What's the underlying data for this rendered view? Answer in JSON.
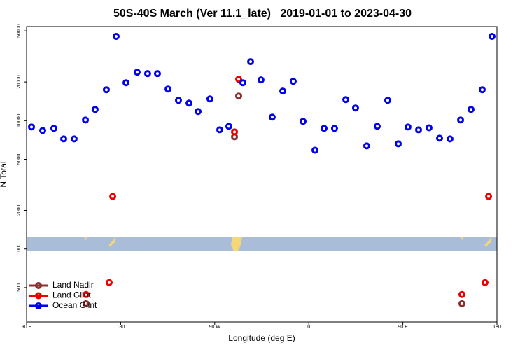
{
  "chart_data": {
    "type": "scatter",
    "title": "50S-40S March (Ver 11.1_late)   2019-01-01 to 2023-04-30",
    "x_label": "Longitude (deg E)",
    "y_label": "N Total",
    "log_y": true,
    "legend": "lower left",
    "xlim": [
      90,
      540
    ],
    "xticks": [
      {
        "value": 90,
        "label": "90 E"
      },
      180,
      {
        "value": 270,
        "label": "90 W"
      },
      {
        "value": 360,
        "label": "0"
      },
      {
        "value": 450,
        "label": "90 E"
      },
      {
        "value": 540,
        "label": "180"
      }
    ],
    "ylim": [
      270,
      54000
    ],
    "yticks": [
      500,
      1000,
      2000,
      5000,
      10000,
      20000,
      50000
    ],
    "series": [
      {
        "name": "Land Nadir",
        "color": "#8b3030",
        "x": [
          292.9,
          288.9,
          146.9,
          506.5
        ],
        "values": [
          15530,
          7490,
          375,
          375
        ]
      },
      {
        "name": "Land Glint",
        "color": "#ee0000",
        "x": [
          172.4,
          169.0,
          146.9,
          292.9,
          288.9,
          506.5,
          528.6,
          532.0
        ],
        "values": [
          2570,
          547,
          442,
          21000,
          8180,
          442,
          547,
          2570
        ]
      },
      {
        "name": "Ocean Glint",
        "color": "#0000ee",
        "x": [
          94.7,
          105.4,
          116.1,
          125.5,
          135.5,
          146.3,
          155.6,
          166.3,
          175.7,
          185.1,
          195.8,
          205.8,
          215.2,
          225.3,
          235.3,
          245.4,
          254.1,
          265.4,
          274.8,
          283.5,
          296.9,
          304.3,
          314.3,
          325.0,
          335.1,
          345.1,
          354.5,
          365.9,
          374.6,
          384.6,
          395.4,
          404.7,
          415.4,
          425.5,
          435.5,
          445.6,
          454.9,
          465.0,
          475.0,
          485.1,
          495.1,
          505.2,
          515.2,
          525.9,
          535.3
        ],
        "values": [
          8930,
          8380,
          8710,
          7210,
          7210,
          10120,
          12230,
          17390,
          45270,
          19730,
          23820,
          23230,
          23230,
          17620,
          14400,
          13700,
          11780,
          14770,
          8490,
          9040,
          19730,
          28770,
          20750,
          10650,
          16980,
          20230,
          9880,
          5890,
          8710,
          8710,
          14590,
          12540,
          6360,
          9040,
          14400,
          6600,
          8930,
          8490,
          8800,
          7300,
          7210,
          10120,
          12230,
          17390,
          45270
        ]
      }
    ]
  }
}
